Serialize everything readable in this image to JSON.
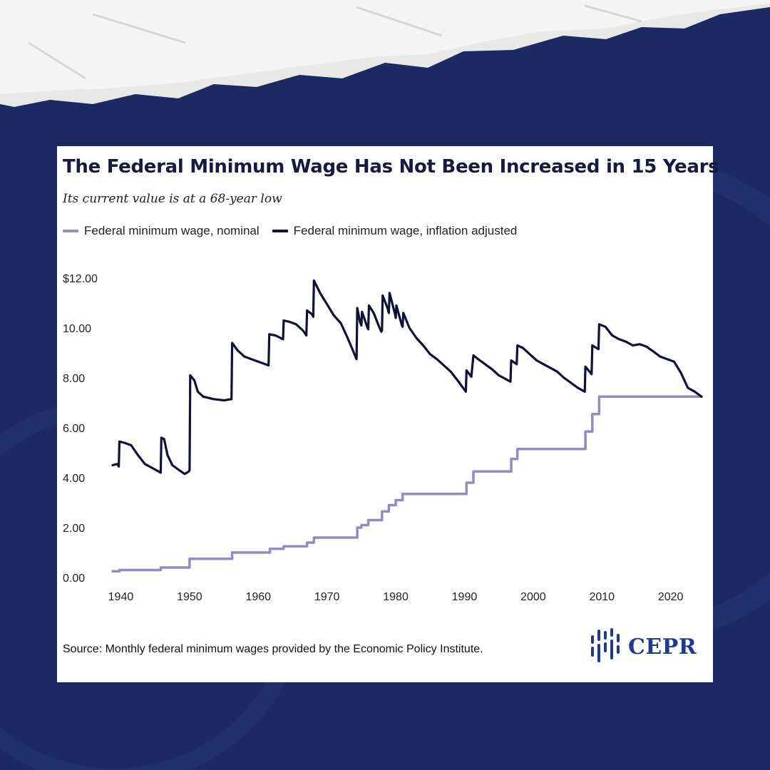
{
  "chart_data": {
    "type": "line",
    "title": "The Federal Minimum Wage Has Not Been Increased in 15 Years",
    "subtitle": "Its current value is at a 68-year low",
    "xlabel": "",
    "ylabel": "",
    "xlim": [
      1938.5,
      2024.6
    ],
    "ylim": [
      0,
      12
    ],
    "x_ticks": [
      1940,
      1950,
      1960,
      1970,
      1980,
      1990,
      2000,
      2010,
      2020
    ],
    "y_ticks": [
      0,
      2,
      4,
      6,
      8,
      10,
      12
    ],
    "y_tick_labels": [
      "0.00",
      "2.00",
      "4.00",
      "6.00",
      "8.00",
      "10.00",
      "$12.00"
    ],
    "grid": false,
    "legend_position": "top-left",
    "series": [
      {
        "name": "Federal minimum wage, nominal",
        "color": "#8f8cc7",
        "step": true,
        "points": [
          [
            1938.8,
            0.25
          ],
          [
            1939.8,
            0.3
          ],
          [
            1945.8,
            0.4
          ],
          [
            1950.0,
            0.75
          ],
          [
            1956.2,
            1.0
          ],
          [
            1961.7,
            1.15
          ],
          [
            1963.7,
            1.25
          ],
          [
            1967.1,
            1.4
          ],
          [
            1968.1,
            1.6
          ],
          [
            1974.4,
            2.0
          ],
          [
            1975.0,
            2.1
          ],
          [
            1976.0,
            2.3
          ],
          [
            1978.0,
            2.65
          ],
          [
            1979.0,
            2.9
          ],
          [
            1980.0,
            3.1
          ],
          [
            1981.0,
            3.35
          ],
          [
            1990.3,
            3.8
          ],
          [
            1991.3,
            4.25
          ],
          [
            1996.8,
            4.75
          ],
          [
            1997.7,
            5.15
          ],
          [
            2007.6,
            5.85
          ],
          [
            2008.6,
            6.55
          ],
          [
            2009.6,
            7.25
          ],
          [
            2024.5,
            7.25
          ]
        ]
      },
      {
        "name": "Federal minimum wage, inflation adjusted",
        "color": "#0f1238",
        "step": false,
        "points": [
          [
            1938.8,
            4.5
          ],
          [
            1939.5,
            4.55
          ],
          [
            1939.7,
            4.45
          ],
          [
            1939.8,
            5.45
          ],
          [
            1940.5,
            5.4
          ],
          [
            1941.5,
            5.3
          ],
          [
            1942.5,
            4.9
          ],
          [
            1943.5,
            4.55
          ],
          [
            1944.5,
            4.4
          ],
          [
            1945.5,
            4.25
          ],
          [
            1945.8,
            4.2
          ],
          [
            1945.9,
            5.6
          ],
          [
            1946.3,
            5.55
          ],
          [
            1946.8,
            4.9
          ],
          [
            1947.5,
            4.5
          ],
          [
            1948.5,
            4.3
          ],
          [
            1949.3,
            4.15
          ],
          [
            1949.9,
            4.25
          ],
          [
            1950.0,
            4.3
          ],
          [
            1950.1,
            8.1
          ],
          [
            1950.7,
            7.9
          ],
          [
            1951.2,
            7.45
          ],
          [
            1952.0,
            7.25
          ],
          [
            1953.5,
            7.15
          ],
          [
            1955.0,
            7.1
          ],
          [
            1956.1,
            7.15
          ],
          [
            1956.2,
            9.4
          ],
          [
            1957.0,
            9.1
          ],
          [
            1958.0,
            8.85
          ],
          [
            1959.5,
            8.7
          ],
          [
            1961.5,
            8.5
          ],
          [
            1961.6,
            9.75
          ],
          [
            1962.5,
            9.7
          ],
          [
            1963.6,
            9.55
          ],
          [
            1963.7,
            10.3
          ],
          [
            1964.5,
            10.25
          ],
          [
            1965.5,
            10.15
          ],
          [
            1966.5,
            9.9
          ],
          [
            1967.0,
            9.7
          ],
          [
            1967.1,
            10.7
          ],
          [
            1967.8,
            10.55
          ],
          [
            1968.0,
            10.45
          ],
          [
            1968.1,
            11.9
          ],
          [
            1969.0,
            11.4
          ],
          [
            1970.0,
            10.95
          ],
          [
            1971.0,
            10.5
          ],
          [
            1972.0,
            10.2
          ],
          [
            1973.0,
            9.6
          ],
          [
            1974.3,
            8.75
          ],
          [
            1974.4,
            10.8
          ],
          [
            1974.8,
            10.25
          ],
          [
            1975.0,
            10.1
          ],
          [
            1975.1,
            10.65
          ],
          [
            1975.9,
            10.0
          ],
          [
            1976.0,
            9.95
          ],
          [
            1976.1,
            10.9
          ],
          [
            1976.8,
            10.6
          ],
          [
            1977.5,
            10.1
          ],
          [
            1977.9,
            9.85
          ],
          [
            1978.0,
            9.9
          ],
          [
            1978.1,
            11.3
          ],
          [
            1978.8,
            10.8
          ],
          [
            1979.0,
            10.6
          ],
          [
            1979.1,
            11.4
          ],
          [
            1979.9,
            10.55
          ],
          [
            1980.0,
            10.4
          ],
          [
            1980.1,
            10.9
          ],
          [
            1980.9,
            10.1
          ],
          [
            1981.0,
            10.05
          ],
          [
            1981.1,
            10.6
          ],
          [
            1982.0,
            10.0
          ],
          [
            1983.0,
            9.6
          ],
          [
            1984.0,
            9.3
          ],
          [
            1985.0,
            8.95
          ],
          [
            1986.0,
            8.75
          ],
          [
            1987.0,
            8.5
          ],
          [
            1988.0,
            8.25
          ],
          [
            1989.0,
            7.9
          ],
          [
            1990.2,
            7.45
          ],
          [
            1990.3,
            8.3
          ],
          [
            1991.0,
            8.05
          ],
          [
            1991.3,
            8.9
          ],
          [
            1992.0,
            8.75
          ],
          [
            1993.0,
            8.55
          ],
          [
            1994.0,
            8.35
          ],
          [
            1995.0,
            8.1
          ],
          [
            1996.7,
            7.85
          ],
          [
            1996.8,
            8.7
          ],
          [
            1997.6,
            8.55
          ],
          [
            1997.7,
            9.3
          ],
          [
            1998.5,
            9.2
          ],
          [
            1999.5,
            8.95
          ],
          [
            2000.5,
            8.7
          ],
          [
            2001.5,
            8.55
          ],
          [
            2002.5,
            8.4
          ],
          [
            2003.5,
            8.25
          ],
          [
            2004.5,
            8.0
          ],
          [
            2005.5,
            7.8
          ],
          [
            2006.5,
            7.6
          ],
          [
            2007.5,
            7.45
          ],
          [
            2007.6,
            8.45
          ],
          [
            2008.5,
            8.15
          ],
          [
            2008.6,
            9.3
          ],
          [
            2009.5,
            9.15
          ],
          [
            2009.6,
            10.15
          ],
          [
            2010.5,
            10.05
          ],
          [
            2011.5,
            9.7
          ],
          [
            2012.5,
            9.55
          ],
          [
            2013.5,
            9.45
          ],
          [
            2014.5,
            9.3
          ],
          [
            2015.5,
            9.35
          ],
          [
            2016.5,
            9.25
          ],
          [
            2017.5,
            9.05
          ],
          [
            2018.5,
            8.85
          ],
          [
            2019.5,
            8.75
          ],
          [
            2020.5,
            8.65
          ],
          [
            2021.5,
            8.2
          ],
          [
            2022.5,
            7.6
          ],
          [
            2023.5,
            7.45
          ],
          [
            2024.5,
            7.25
          ]
        ]
      }
    ],
    "source": "Source: Monthly federal minimum wages provided by the Economic Policy Institute.",
    "logo_text": "CEPR"
  },
  "colors": {
    "background": "#1b2a63",
    "card": "#ffffff",
    "title": "#141a40",
    "logo": "#1f3a93"
  }
}
